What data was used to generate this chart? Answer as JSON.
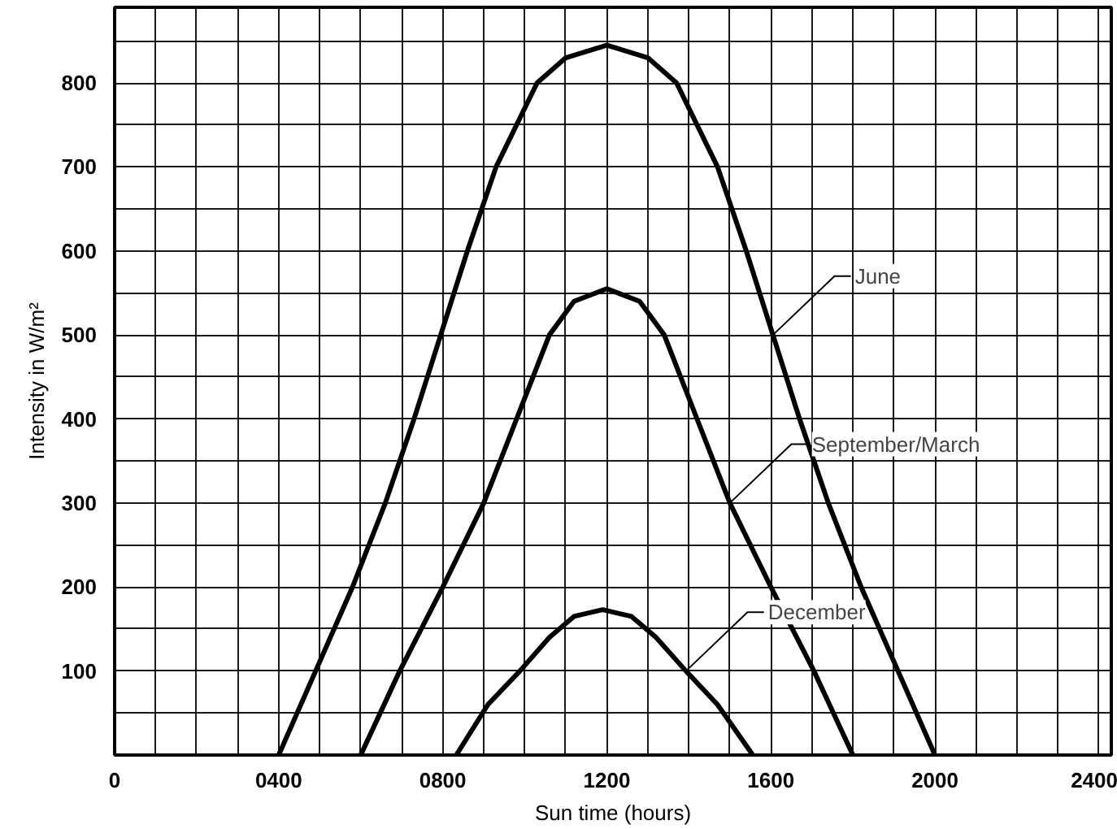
{
  "chart_data": {
    "type": "line",
    "xlabel": "Sun time (hours)",
    "ylabel": "Intensity in W/m²",
    "xlim": [
      0,
      2430
    ],
    "ylim": [
      0,
      890
    ],
    "xticks": [
      0,
      {
        "value": 100,
        "label": null
      },
      {
        "value": 200,
        "label": null
      },
      {
        "value": 300,
        "label": null
      },
      {
        "value": 400,
        "label": "0400"
      },
      {
        "value": 500,
        "label": null
      },
      {
        "value": 600,
        "label": null
      },
      {
        "value": 700,
        "label": null
      },
      {
        "value": 800,
        "label": "0800"
      },
      {
        "value": 900,
        "label": null
      },
      {
        "value": 1000,
        "label": null
      },
      {
        "value": 1100,
        "label": null
      },
      1200,
      {
        "value": 1300,
        "label": null
      },
      {
        "value": 1400,
        "label": null
      },
      {
        "value": 1500,
        "label": null
      },
      1600,
      {
        "value": 1700,
        "label": null
      },
      {
        "value": 1800,
        "label": null
      },
      {
        "value": 1900,
        "label": null
      },
      2000,
      {
        "value": 2100,
        "label": null
      },
      {
        "value": 2200,
        "label": null
      },
      {
        "value": 2300,
        "label": null
      },
      2400
    ],
    "yticks": [
      {
        "value": 50,
        "label": null
      },
      100,
      {
        "value": 150,
        "label": null
      },
      200,
      {
        "value": 250,
        "label": null
      },
      300,
      {
        "value": 350,
        "label": null
      },
      400,
      {
        "value": 450,
        "label": null
      },
      500,
      {
        "value": 550,
        "label": null
      },
      600,
      {
        "value": 650,
        "label": null
      },
      700,
      {
        "value": 750,
        "label": null
      },
      800,
      {
        "value": 850,
        "label": null
      }
    ],
    "grid": true,
    "line_style": "solid",
    "marker": "none",
    "series": [
      {
        "color": "#000000",
        "x": [
          400,
          490,
          580,
          660,
          730,
          795,
          860,
          930,
          1030,
          1100,
          1200,
          1300,
          1370,
          1470,
          1540,
          1605,
          1670,
          1740,
          1820,
          1910,
          2000
        ],
        "values": [
          0,
          100,
          200,
          300,
          400,
          500,
          600,
          700,
          800,
          830,
          845,
          830,
          800,
          700,
          600,
          500,
          400,
          300,
          200,
          100,
          0
        ]
      },
      {
        "color": "#000000",
        "x": [
          600,
          695,
          800,
          900,
          980,
          1060,
          1120,
          1200,
          1280,
          1340,
          1420,
          1500,
          1600,
          1705,
          1800
        ],
        "values": [
          0,
          100,
          200,
          300,
          400,
          500,
          540,
          555,
          540,
          500,
          400,
          300,
          200,
          100,
          0
        ]
      },
      {
        "color": "#000000",
        "x": [
          833,
          910,
          988,
          1060,
          1120,
          1190,
          1260,
          1320,
          1393,
          1470,
          1556
        ],
        "values": [
          0,
          60,
          100,
          140,
          165,
          173,
          165,
          140,
          100,
          60,
          0
        ]
      }
    ],
    "annotations": [
      {
        "text": "June",
        "x": 1605,
        "y": 500
      },
      {
        "text": "September/March",
        "x": 1500,
        "y": 300
      },
      {
        "text": "December",
        "x": 1393,
        "y": 100
      }
    ]
  }
}
